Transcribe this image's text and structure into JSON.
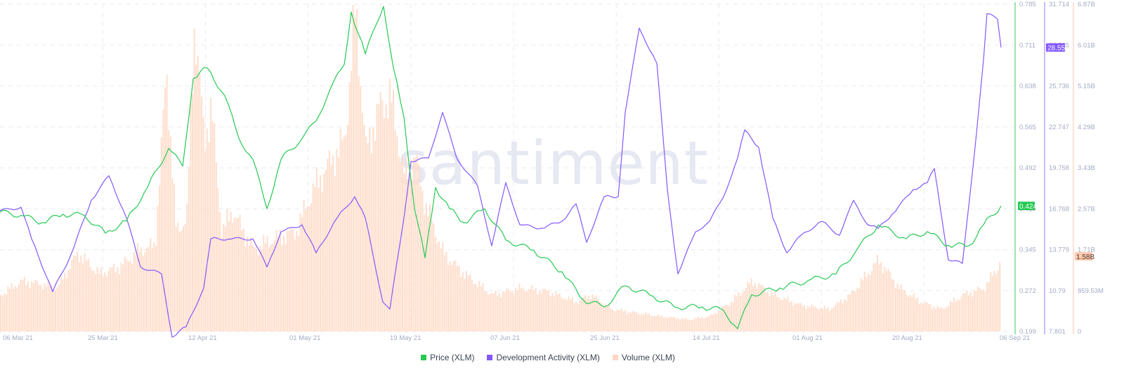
{
  "chart_data": {
    "type": "line",
    "title": "",
    "watermark": "santiment",
    "xlabel": "",
    "x_ticks": [
      "06 Mar 21",
      "25 Mar 21",
      "12 Apr 21",
      "01 May 21",
      "19 May 21",
      "07 Jun 21",
      "25 Jun 21",
      "14 Jul 21",
      "01 Aug 21",
      "20 Aug 21",
      "06 Sep 21"
    ],
    "grid": true,
    "axes": [
      {
        "name": "Price (XLM)",
        "color": "#26c953",
        "range": [
          0.199,
          0.785
        ],
        "ticks": [
          "0.785",
          "0.711",
          "0.638",
          "0.565",
          "0.492",
          "0.419",
          "0.345",
          "0.272",
          "0.199"
        ],
        "current_label": "0.424"
      },
      {
        "name": "Development Activity (XLM)",
        "color": "#8358ff",
        "range": [
          7.801,
          31.714
        ],
        "ticks": [
          "31.714",
          "28.725",
          "25.736",
          "22.747",
          "19.758",
          "16.768",
          "13.779",
          "10.79",
          "7.801"
        ],
        "current_label": "28.55"
      },
      {
        "name": "Volume (XLM)",
        "color": "#ffcbb0",
        "range": [
          0,
          6.87
        ],
        "unit": "B",
        "ticks": [
          "6.87B",
          "6.01B",
          "5.15B",
          "4.29B",
          "3.43B",
          "2.57B",
          "1.71B",
          "859.53M",
          "0"
        ],
        "current_label": "1.58B"
      }
    ],
    "series": [
      {
        "name": "Price (XLM)",
        "type": "line",
        "color": "#26c953",
        "axis": 0,
        "points": [
          [
            0,
            0.413
          ],
          [
            30,
            0.407
          ],
          [
            60,
            0.394
          ],
          [
            90,
            0.409
          ],
          [
            120,
            0.407
          ],
          [
            150,
            0.375
          ],
          [
            180,
            0.397
          ],
          [
            210,
            0.457
          ],
          [
            240,
            0.527
          ],
          [
            260,
            0.495
          ],
          [
            275,
            0.652
          ],
          [
            295,
            0.671
          ],
          [
            320,
            0.621
          ],
          [
            340,
            0.545
          ],
          [
            360,
            0.507
          ],
          [
            380,
            0.419
          ],
          [
            400,
            0.507
          ],
          [
            430,
            0.545
          ],
          [
            450,
            0.576
          ],
          [
            470,
            0.633
          ],
          [
            490,
            0.677
          ],
          [
            500,
            0.771
          ],
          [
            520,
            0.696
          ],
          [
            546,
            0.781
          ],
          [
            560,
            0.671
          ],
          [
            575,
            0.583
          ],
          [
            590,
            0.419
          ],
          [
            605,
            0.331
          ],
          [
            620,
            0.457
          ],
          [
            640,
            0.419
          ],
          [
            660,
            0.394
          ],
          [
            690,
            0.419
          ],
          [
            720,
            0.363
          ],
          [
            760,
            0.344
          ],
          [
            800,
            0.306
          ],
          [
            830,
            0.256
          ],
          [
            860,
            0.243
          ],
          [
            890,
            0.281
          ],
          [
            930,
            0.262
          ],
          [
            960,
            0.243
          ],
          [
            1000,
            0.243
          ],
          [
            1030,
            0.237
          ],
          [
            1050,
            0.204
          ],
          [
            1070,
            0.265
          ],
          [
            1110,
            0.277
          ],
          [
            1150,
            0.29
          ],
          [
            1190,
            0.302
          ],
          [
            1220,
            0.346
          ],
          [
            1250,
            0.39
          ],
          [
            1290,
            0.365
          ],
          [
            1320,
            0.378
          ],
          [
            1350,
            0.353
          ],
          [
            1380,
            0.353
          ],
          [
            1400,
            0.39
          ],
          [
            1425,
            0.424
          ]
        ]
      },
      {
        "name": "Development Activity (XLM)",
        "type": "line",
        "color": "#8358ff",
        "axis": 1,
        "points": [
          [
            0,
            16.62
          ],
          [
            30,
            16.88
          ],
          [
            45,
            14.57
          ],
          [
            75,
            10.72
          ],
          [
            100,
            13.29
          ],
          [
            130,
            17.39
          ],
          [
            155,
            19.19
          ],
          [
            180,
            16.11
          ],
          [
            200,
            12.52
          ],
          [
            230,
            12.01
          ],
          [
            245,
            7.39
          ],
          [
            265,
            8.16
          ],
          [
            290,
            10.98
          ],
          [
            300,
            14.57
          ],
          [
            330,
            14.57
          ],
          [
            360,
            14.57
          ],
          [
            380,
            12.52
          ],
          [
            400,
            15.08
          ],
          [
            430,
            15.6
          ],
          [
            450,
            13.55
          ],
          [
            480,
            16.11
          ],
          [
            505,
            17.65
          ],
          [
            520,
            16.11
          ],
          [
            545,
            9.95
          ],
          [
            555,
            9.44
          ],
          [
            575,
            16.11
          ],
          [
            585,
            20.22
          ],
          [
            610,
            20.48
          ],
          [
            630,
            23.81
          ],
          [
            650,
            20.48
          ],
          [
            680,
            18.42
          ],
          [
            700,
            14.06
          ],
          [
            720,
            18.68
          ],
          [
            740,
            15.6
          ],
          [
            770,
            15.34
          ],
          [
            800,
            15.85
          ],
          [
            820,
            17.14
          ],
          [
            835,
            14.32
          ],
          [
            860,
            17.65
          ],
          [
            880,
            17.65
          ],
          [
            890,
            23.81
          ],
          [
            910,
            29.97
          ],
          [
            935,
            27.4
          ],
          [
            950,
            18.17
          ],
          [
            965,
            12.01
          ],
          [
            990,
            15.08
          ],
          [
            1010,
            15.85
          ],
          [
            1030,
            17.65
          ],
          [
            1050,
            20.48
          ],
          [
            1060,
            22.53
          ],
          [
            1080,
            21.25
          ],
          [
            1100,
            16.11
          ],
          [
            1120,
            13.55
          ],
          [
            1140,
            14.83
          ],
          [
            1170,
            15.85
          ],
          [
            1195,
            14.83
          ],
          [
            1215,
            17.39
          ],
          [
            1235,
            15.6
          ],
          [
            1250,
            15.34
          ],
          [
            1270,
            16.37
          ],
          [
            1300,
            18.17
          ],
          [
            1320,
            18.68
          ],
          [
            1330,
            19.71
          ],
          [
            1350,
            13.03
          ],
          [
            1370,
            12.78
          ],
          [
            1390,
            22.27
          ],
          [
            1400,
            27.65
          ],
          [
            1405,
            31.03
          ],
          [
            1420,
            30.62
          ],
          [
            1425,
            28.55
          ]
        ]
      },
      {
        "name": "Volume (XLM)",
        "type": "area",
        "color": "#ffcbb0",
        "axis": 2,
        "points": [
          [
            0,
            0.77
          ],
          [
            30,
            1.06
          ],
          [
            60,
            0.99
          ],
          [
            80,
            0.91
          ],
          [
            110,
            1.65
          ],
          [
            140,
            1.21
          ],
          [
            170,
            1.36
          ],
          [
            200,
            1.72
          ],
          [
            220,
            1.8
          ],
          [
            236,
            5.48
          ],
          [
            250,
            2.09
          ],
          [
            265,
            2.39
          ],
          [
            276,
            6.55
          ],
          [
            290,
            3.99
          ],
          [
            300,
            4.72
          ],
          [
            315,
            2.09
          ],
          [
            330,
            2.53
          ],
          [
            360,
            1.72
          ],
          [
            390,
            1.95
          ],
          [
            420,
            2.09
          ],
          [
            445,
            2.98
          ],
          [
            470,
            3.57
          ],
          [
            490,
            4.01
          ],
          [
            505,
            6.74
          ],
          [
            520,
            3.79
          ],
          [
            540,
            4.72
          ],
          [
            555,
            4.94
          ],
          [
            575,
            3.24
          ],
          [
            590,
            3.68
          ],
          [
            605,
            2.65
          ],
          [
            630,
            1.65
          ],
          [
            660,
            1.21
          ],
          [
            700,
            0.77
          ],
          [
            740,
            0.91
          ],
          [
            780,
            0.84
          ],
          [
            820,
            0.62
          ],
          [
            840,
            0.77
          ],
          [
            870,
            0.47
          ],
          [
            900,
            0.4
          ],
          [
            940,
            0.32
          ],
          [
            980,
            0.25
          ],
          [
            1010,
            0.32
          ],
          [
            1040,
            0.62
          ],
          [
            1070,
            1.06
          ],
          [
            1100,
            0.77
          ],
          [
            1140,
            0.55
          ],
          [
            1180,
            0.47
          ],
          [
            1210,
            0.77
          ],
          [
            1250,
            1.5
          ],
          [
            1280,
            0.91
          ],
          [
            1310,
            0.62
          ],
          [
            1340,
            0.47
          ],
          [
            1370,
            0.77
          ],
          [
            1400,
            0.91
          ],
          [
            1420,
            1.36
          ],
          [
            1425,
            1.58
          ]
        ]
      }
    ]
  },
  "legend": {
    "items": [
      {
        "label": "Price (XLM)",
        "color": "#26c953"
      },
      {
        "label": "Development Activity (XLM)",
        "color": "#8358ff"
      },
      {
        "label": "Volume (XLM)",
        "color": "#ffd6c2"
      }
    ]
  }
}
